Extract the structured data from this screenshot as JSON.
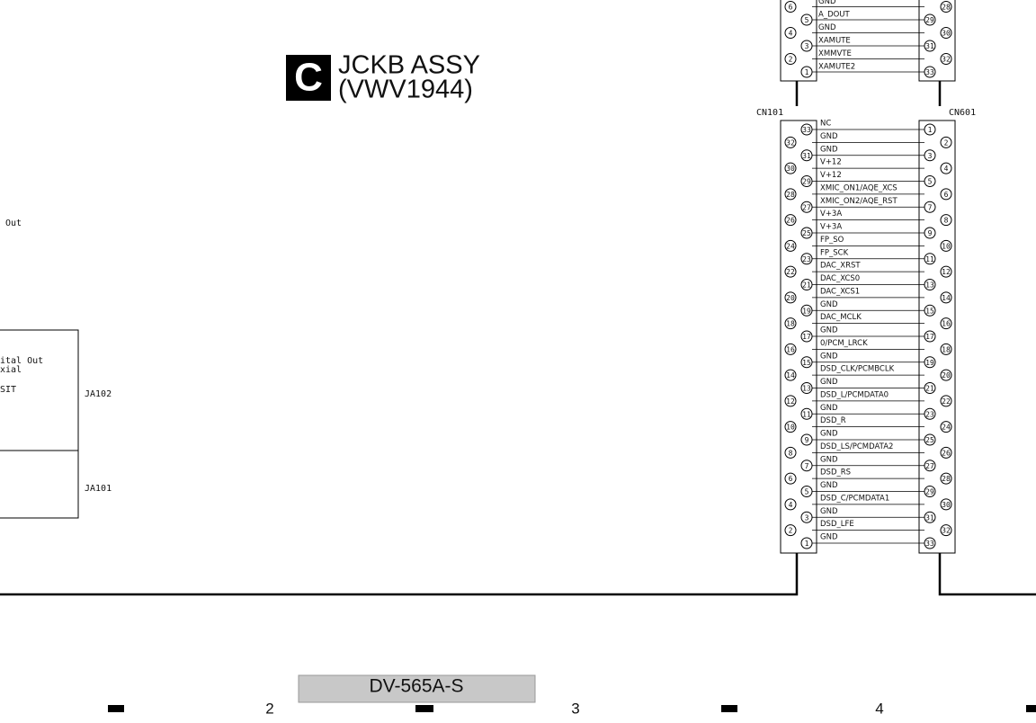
{
  "header": {
    "badge": "C",
    "title": "JCKB ASSY",
    "part": "(VWV1944)"
  },
  "top_connector": {
    "left_pins": [
      6,
      5,
      4,
      3,
      2,
      1
    ],
    "signals": [
      "GND",
      "A_DOUT",
      "GND",
      "XAMUTE",
      "XMMVTE",
      "XAMUTE2"
    ],
    "right_pins": [
      28,
      29,
      30,
      31,
      32,
      33
    ]
  },
  "cn101": {
    "label": "CN101",
    "pins": [
      33,
      32,
      31,
      30,
      29,
      28,
      27,
      26,
      25,
      24,
      23,
      22,
      21,
      20,
      19,
      18,
      17,
      16,
      15,
      14,
      13,
      12,
      11,
      10,
      9,
      8,
      7,
      6,
      5,
      4,
      3,
      2,
      1
    ]
  },
  "cn601": {
    "label": "CN601",
    "pins": [
      1,
      2,
      3,
      4,
      5,
      6,
      7,
      8,
      9,
      10,
      11,
      12,
      13,
      14,
      15,
      16,
      17,
      18,
      19,
      20,
      21,
      22,
      23,
      24,
      25,
      26,
      27,
      28,
      29,
      30,
      31,
      32,
      33
    ]
  },
  "signals": [
    "NC",
    "GND",
    "GND",
    "V+12",
    "V+12",
    "XMIC_ON1/AQE_XCS",
    "XMIC_ON2/AQE_RST",
    "V+3A",
    "V+3A",
    "FP_SO",
    "FP_SCK",
    "DAC_XRST",
    "DAC_XCS0",
    "DAC_XCS1",
    "GND",
    "DAC_MCLK",
    "GND",
    "0/PCM_LRCK",
    "GND",
    "DSD_CLK/PCMBCLK",
    "GND",
    "DSD_L/PCMDATA0",
    "GND",
    "DSD_R",
    "GND",
    "DSD_LS/PCMDATA2",
    "GND",
    "DSD_RS",
    "GND",
    "DSD_C/PCMDATA1",
    "GND",
    "DSD_LFE",
    "GND"
  ],
  "left_panel": {
    "out": "Out",
    "digital_out": "ital Out",
    "coaxial": "xial",
    "sit": "SIT",
    "ja102": "JA102",
    "ja101": "JA101"
  },
  "footer": {
    "model": "DV-565A-S",
    "zones": [
      "2",
      "3",
      "4"
    ]
  }
}
